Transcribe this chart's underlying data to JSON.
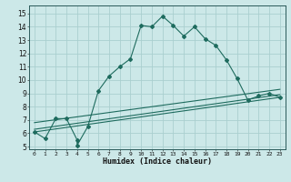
{
  "xlabel": "Humidex (Indice chaleur)",
  "background_color": "#cce8e8",
  "grid_color": "#aacfcf",
  "line_color": "#1e6b5e",
  "xlim": [
    -0.5,
    23.5
  ],
  "ylim": [
    4.8,
    15.6
  ],
  "xticks": [
    0,
    1,
    2,
    3,
    4,
    5,
    6,
    7,
    8,
    9,
    10,
    11,
    12,
    13,
    14,
    15,
    16,
    17,
    18,
    19,
    20,
    21,
    22,
    23
  ],
  "yticks": [
    5,
    6,
    7,
    8,
    9,
    10,
    11,
    12,
    13,
    14,
    15
  ],
  "series1_x": [
    0,
    1,
    2,
    3,
    4,
    4,
    5,
    6,
    7,
    8,
    9,
    10,
    11,
    12,
    13,
    14,
    15,
    16,
    17,
    18,
    19,
    20,
    21,
    22,
    23
  ],
  "series1_y": [
    6.1,
    5.6,
    7.1,
    7.1,
    5.5,
    5.1,
    6.5,
    9.2,
    10.3,
    11.0,
    11.6,
    14.1,
    14.0,
    14.8,
    14.1,
    13.3,
    14.0,
    13.1,
    12.6,
    11.5,
    10.1,
    8.5,
    8.8,
    9.0,
    8.7
  ],
  "series2_x": [
    0,
    23
  ],
  "series2_y": [
    6.1,
    8.7
  ],
  "series3_x": [
    0,
    23
  ],
  "series3_y": [
    6.3,
    8.9
  ],
  "series4_x": [
    0,
    23
  ],
  "series4_y": [
    6.8,
    9.3
  ]
}
